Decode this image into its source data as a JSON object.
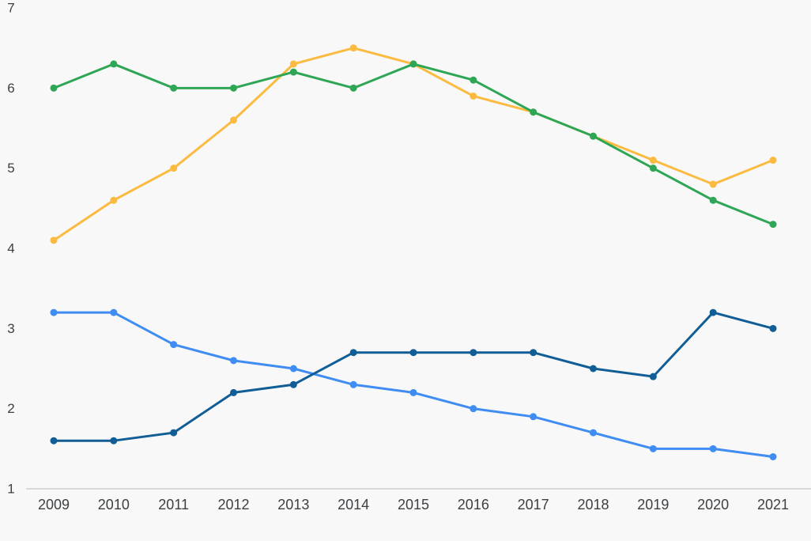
{
  "chart_data": {
    "type": "line",
    "title": "",
    "xlabel": "",
    "ylabel": "",
    "categories": [
      "2009",
      "2010",
      "2011",
      "2012",
      "2013",
      "2014",
      "2015",
      "2016",
      "2017",
      "2018",
      "2019",
      "2020",
      "2021"
    ],
    "series": [
      {
        "name": "orange",
        "color": "#fbbb41",
        "values": [
          4.1,
          4.6,
          5.0,
          5.6,
          6.3,
          6.5,
          6.3,
          5.9,
          5.7,
          5.4,
          5.1,
          4.8,
          5.1
        ]
      },
      {
        "name": "green",
        "color": "#2ea656",
        "values": [
          6.0,
          6.3,
          6.0,
          6.0,
          6.2,
          6.0,
          6.3,
          6.1,
          5.7,
          5.4,
          5.0,
          4.6,
          4.3
        ]
      },
      {
        "name": "light-blue",
        "color": "#3f8df2",
        "values": [
          3.2,
          3.2,
          2.8,
          2.6,
          2.5,
          2.3,
          2.2,
          2.0,
          1.9,
          1.7,
          1.5,
          1.5,
          1.4
        ]
      },
      {
        "name": "dark-blue",
        "color": "#115e96",
        "values": [
          1.6,
          1.6,
          1.7,
          2.2,
          2.3,
          2.7,
          2.7,
          2.7,
          2.7,
          2.5,
          2.4,
          3.2,
          3.0
        ]
      }
    ],
    "ylim": [
      1,
      7
    ],
    "yticks": [
      1,
      2,
      3,
      4,
      5,
      6,
      7
    ],
    "grid": false,
    "legend_position": "none",
    "marker": "circle",
    "background_color": "#f8f8f8",
    "axis_line_color": "#d9d9d9",
    "text_color": "#3d4043"
  }
}
